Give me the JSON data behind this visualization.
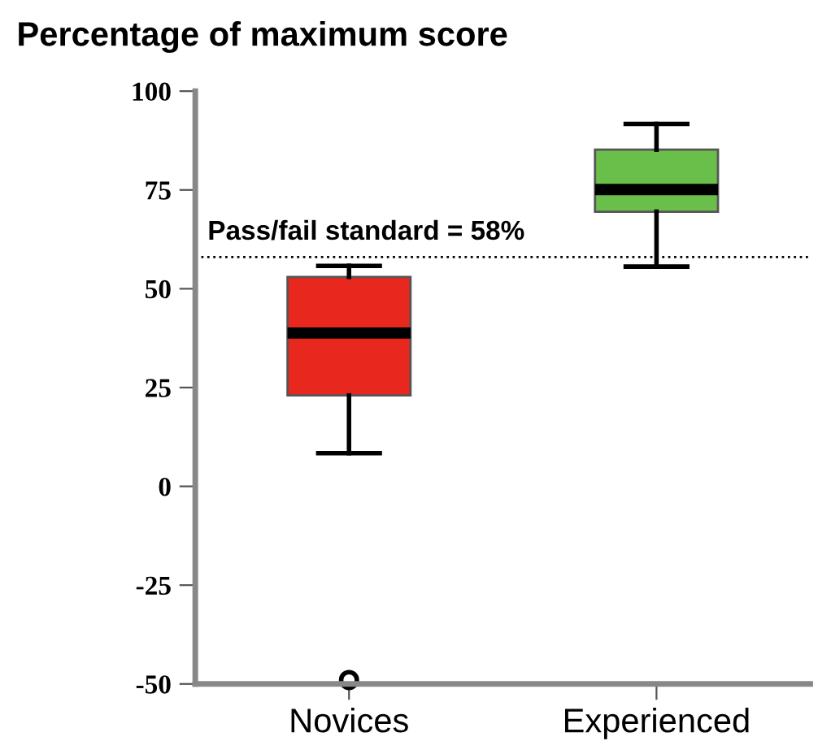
{
  "chart_data": {
    "type": "box",
    "title": "Percentage of maximum score",
    "categories": [
      "Novices",
      "Experienced"
    ],
    "colors": [
      "#e8281f",
      "#6abf4b"
    ],
    "boxes": [
      {
        "low": 8.4,
        "q1": 23,
        "median": 38.8,
        "q3": 53,
        "high": 55.8,
        "outliers": [
          -49
        ]
      },
      {
        "low": 55.6,
        "q1": 69.5,
        "median": 75.1,
        "q3": 85.2,
        "high": 91.7
      }
    ],
    "ylim": [
      -50,
      100
    ],
    "yticks": [
      -50,
      -25,
      0,
      25,
      50,
      75,
      100
    ],
    "grid": false,
    "ref_lines": [
      {
        "axis": "y",
        "value": 58,
        "label": "Pass/fail standard = 58%",
        "line_style": "dotted"
      }
    ]
  }
}
